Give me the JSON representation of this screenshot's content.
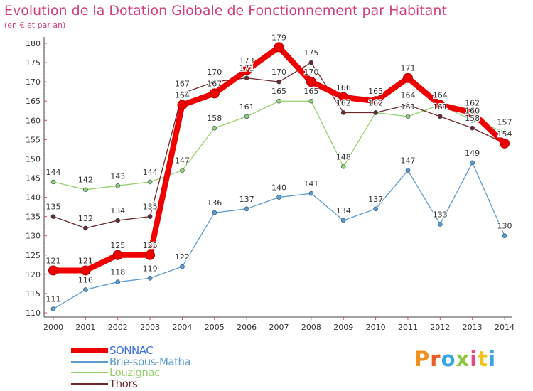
{
  "title": "Evolution de la Dotation Globale de Fonctionnement par Habitant",
  "subtitle": "(en € et par an)",
  "logo": {
    "text": "Proxiti",
    "letter_colors": [
      "#f0901e",
      "#e85d26",
      "#3aa5e0",
      "#8dc63f",
      "#e84a88",
      "#f0c419",
      "#3aa5e0"
    ]
  },
  "chart_data": {
    "type": "line",
    "title": "Evolution de la Dotation Globale de Fonctionnement par Habitant",
    "subtitle": "(en € et par an)",
    "x": [
      "2000",
      "2001",
      "2002",
      "2003",
      "2004",
      "2005",
      "2006",
      "2007",
      "2008",
      "2009",
      "2010",
      "2011",
      "2012",
      "2013",
      "2014"
    ],
    "ylim": [
      110,
      180
    ],
    "yticks": [
      110,
      115,
      120,
      125,
      130,
      135,
      140,
      145,
      150,
      155,
      160,
      165,
      170,
      175,
      180
    ],
    "grid": false,
    "legend": "bottom-left",
    "series": [
      {
        "name": "Brie-sous-Matha",
        "color": "#5b9bd0",
        "values": [
          111,
          116,
          118,
          119,
          122,
          136,
          137,
          140,
          141,
          134,
          137,
          147,
          133,
          149,
          130
        ]
      },
      {
        "name": "Louzignac",
        "color": "#95d16a",
        "values": [
          144,
          142,
          143,
          144,
          147,
          158,
          161,
          165,
          165,
          148,
          162,
          161,
          164,
          160,
          157
        ]
      },
      {
        "name": "Thors",
        "color": "#6e2727",
        "values": [
          135,
          132,
          134,
          135,
          167,
          170,
          171,
          170,
          175,
          162,
          162,
          164,
          161,
          158,
          154
        ]
      },
      {
        "name": "SONNAC",
        "color": "#ee0000",
        "values": [
          121,
          121,
          125,
          125,
          164,
          167,
          173,
          179,
          170,
          166,
          165,
          171,
          164,
          162,
          154
        ]
      }
    ]
  }
}
